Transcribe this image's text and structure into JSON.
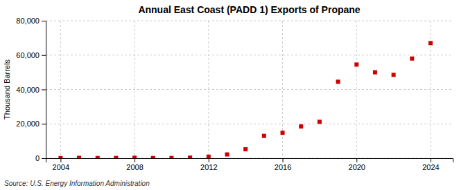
{
  "chart_data": {
    "type": "scatter",
    "title": "Annual East Coast (PADD 1) Exports of Propane",
    "ylabel": "Thousand Barrels",
    "source": "Source: U.S. Energy Information Administration",
    "x": [
      2004,
      2005,
      2006,
      2007,
      2008,
      2009,
      2010,
      2011,
      2012,
      2013,
      2014,
      2015,
      2016,
      2017,
      2018,
      2019,
      2020,
      2021,
      2022,
      2023,
      2024
    ],
    "values": [
      80,
      200,
      120,
      150,
      280,
      120,
      150,
      350,
      900,
      2200,
      5200,
      13000,
      14800,
      18500,
      21200,
      44500,
      54500,
      50000,
      48500,
      58000,
      67000
    ],
    "color": "#cc0000",
    "marker": "square",
    "xlim": [
      2003.2,
      2025.2
    ],
    "ylim": [
      0,
      80000
    ],
    "xticks": [
      2004,
      2008,
      2012,
      2016,
      2020,
      2024
    ],
    "yticks": [
      0,
      {
        "value": 20000,
        "label": "20,000"
      },
      {
        "value": 40000,
        "label": "40,000"
      },
      {
        "value": 60000,
        "label": "60,000"
      },
      {
        "value": 80000,
        "label": "80,000"
      }
    ],
    "grid": true
  }
}
